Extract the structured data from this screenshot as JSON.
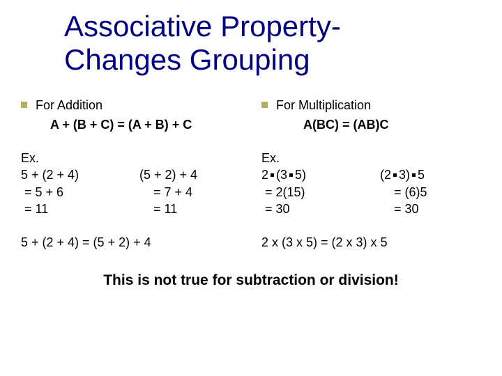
{
  "title_line1": "Associative Property-",
  "title_line2": "Changes Grouping",
  "left": {
    "heading": "For Addition",
    "formula": "A + (B + C) = (A + B) + C",
    "ex_label": "Ex.",
    "row1_left": "5 + (2 + 4)",
    "row1_right": "(5 + 2) + 4",
    "row2_left": " = 5 + 6",
    "row2_right": "    = 7 + 4",
    "row3_left": " = 11",
    "row3_right": "    = 11",
    "summary": "5 + (2 + 4) = (5 + 2) + 4"
  },
  "right": {
    "heading": "For Multiplication",
    "formula": "A(BC) = (AB)C",
    "ex_label": "Ex.",
    "row1_l_a": "2",
    "row1_l_b": "(3",
    "row1_l_c": "5)",
    "row1_r_a": "(2",
    "row1_r_b": "3)",
    "row1_r_c": "5",
    "row2_left": " = 2(15)",
    "row2_right": "    = (6)5",
    "row3_left": " = 30",
    "row3_right": "    = 30",
    "summary": "2 x (3 x 5) = (2 x 3) x 5"
  },
  "footer": "This is not true for subtraction or division!",
  "colors": {
    "title": "#000080",
    "bullet": "#b0b060",
    "text": "#000000",
    "background": "#ffffff"
  }
}
